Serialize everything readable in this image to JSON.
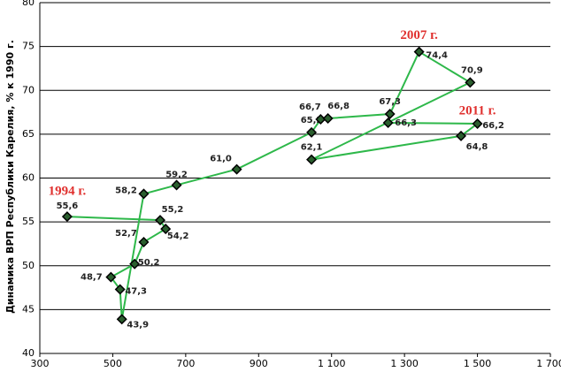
{
  "chart_data": {
    "type": "scatter-line",
    "ylabel": "Динамика ВРП Республики Карелия, % к 1990 г.",
    "x": [
      375,
      630,
      645,
      585,
      560,
      495,
      520,
      525,
      585,
      675,
      840,
      1045,
      1070,
      1090,
      1260,
      1340,
      1480,
      1045,
      1455,
      1500,
      1255
    ],
    "values": [
      55.6,
      55.2,
      54.2,
      52.7,
      50.2,
      48.7,
      47.3,
      43.9,
      58.2,
      59.2,
      61.0,
      65.2,
      66.7,
      66.8,
      67.3,
      74.4,
      70.9,
      62.1,
      64.8,
      66.2,
      66.3
    ],
    "value_labels": [
      "55,6",
      "55,2",
      "54,2",
      "52,7",
      "50,2",
      "48,7",
      "47,3",
      "43,9",
      "58,2",
      "59,2",
      "61,0",
      "65,2",
      "66,7",
      "66,8",
      "67,3",
      "74,4",
      "70,9",
      "62,1",
      "64,8",
      "66,2",
      "66,3"
    ],
    "color": "#2eb84a",
    "annotations": [
      "1994 г.",
      "2007 г.",
      "2011 г."
    ],
    "xlim": [
      300,
      1700
    ],
    "xticks": [
      300,
      500,
      700,
      900,
      {
        "value": 1100,
        "label": "1 100"
      },
      {
        "value": 1300,
        "label": "1 300"
      },
      {
        "value": 1500,
        "label": "1 500"
      },
      {
        "value": 1700,
        "label": "1 700"
      }
    ],
    "ylim": [
      40,
      80
    ],
    "yticks": [
      40,
      45,
      50,
      55,
      60,
      65,
      70,
      75,
      80
    ],
    "grid": true
  }
}
